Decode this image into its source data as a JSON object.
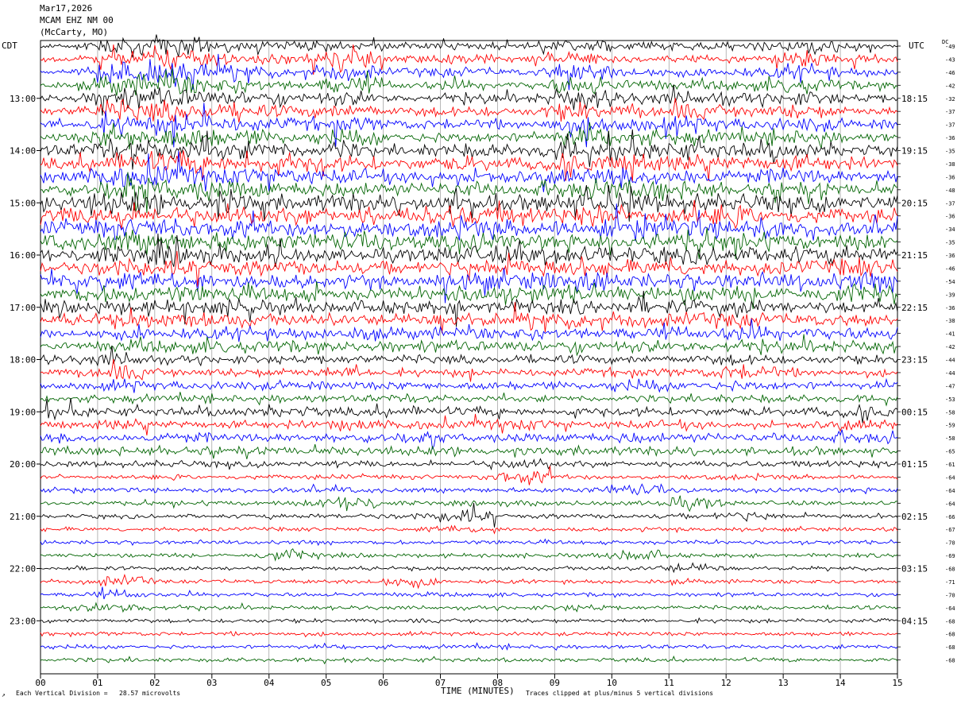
{
  "header": {
    "date": "Mar17,2026",
    "station": "MCAM EHZ NM 00",
    "location": "(McCarty, MO)"
  },
  "left_axis_title": "CDT",
  "right_axis_title": "UTC",
  "dc_title": "DC",
  "x_axis_title": "TIME (MINUTES)",
  "footer": {
    "scale_note": "Each Vertical Division =   28.57 microvolts",
    "clip_note": "Traces clipped at plus/minus 5 vertical divisions",
    "corner_mark": "↗"
  },
  "chart_data": {
    "type": "line",
    "subtype": "helicorder",
    "xlabel": "TIME (MINUTES)",
    "xlim": [
      0,
      15
    ],
    "x_ticks": [
      "00",
      "01",
      "02",
      "03",
      "04",
      "05",
      "06",
      "07",
      "08",
      "09",
      "10",
      "11",
      "12",
      "13",
      "14",
      "15"
    ],
    "rows_count": 48,
    "minutes_per_row": 15,
    "trace_colors": [
      "#000000",
      "#ff0000",
      "#0000ff",
      "#006400"
    ],
    "left_labels_cdt": [
      "13:00",
      "14:00",
      "15:00",
      "16:00",
      "17:00",
      "18:00",
      "19:00",
      "20:00",
      "21:00",
      "22:00",
      "23:00"
    ],
    "right_labels_utc": [
      "18:15",
      "19:15",
      "20:15",
      "21:15",
      "22:15",
      "23:15",
      "00:15",
      "01:15",
      "02:15",
      "03:15",
      "04:15"
    ],
    "dc_offsets": [
      -49,
      -43,
      -46,
      -42,
      -32,
      -37,
      -37,
      -36,
      -35,
      -38,
      -36,
      -48,
      -37,
      -36,
      -34,
      -35,
      -36,
      -46,
      -54,
      -39,
      -36,
      -38,
      -41,
      -42,
      -44,
      -44,
      -47,
      -53,
      -58,
      -59,
      -58,
      -65,
      -61,
      -64,
      -64,
      -64,
      -66,
      -67,
      -70,
      -69,
      -68,
      -71,
      -70,
      -64,
      -68,
      -68,
      -68,
      -68
    ],
    "activity_levels": [
      [
        0.4,
        2.0,
        3.0,
        1.5,
        1.0,
        1.5,
        0.8,
        1.2,
        0.6,
        2.0,
        1.0,
        1.0,
        1.0,
        2.0,
        1.0
      ],
      [
        0.4,
        2.5,
        3.0,
        1.5,
        1.0,
        3.0,
        0.8,
        1.2,
        0.6,
        2.0,
        1.0,
        1.0,
        1.0,
        2.5,
        1.0
      ],
      [
        0.6,
        3.0,
        3.0,
        2.0,
        1.2,
        2.5,
        0.9,
        1.2,
        0.7,
        2.5,
        1.5,
        1.0,
        1.2,
        2.0,
        1.0
      ],
      [
        0.6,
        3.0,
        3.0,
        2.0,
        1.2,
        2.5,
        0.9,
        1.2,
        0.7,
        2.5,
        1.5,
        1.0,
        1.2,
        2.0,
        1.0
      ],
      [
        1.0,
        3.0,
        3.0,
        2.0,
        1.5,
        2.0,
        1.0,
        1.5,
        1.0,
        2.5,
        1.5,
        2.0,
        1.5,
        2.0,
        1.0
      ],
      [
        1.0,
        3.0,
        3.0,
        2.0,
        1.5,
        2.0,
        1.0,
        1.5,
        1.0,
        2.5,
        1.5,
        2.0,
        1.5,
        2.0,
        1.0
      ],
      [
        1.0,
        3.0,
        3.0,
        2.0,
        1.5,
        2.0,
        1.2,
        1.5,
        1.2,
        2.5,
        2.0,
        2.0,
        1.5,
        2.0,
        1.2
      ],
      [
        1.0,
        3.0,
        3.0,
        2.0,
        1.5,
        2.0,
        1.2,
        1.5,
        1.2,
        2.5,
        2.0,
        2.0,
        1.5,
        2.0,
        1.2
      ],
      [
        1.5,
        3.0,
        3.0,
        2.5,
        2.0,
        2.0,
        1.5,
        2.0,
        1.5,
        2.5,
        2.5,
        2.5,
        2.0,
        2.0,
        1.5
      ],
      [
        1.5,
        3.0,
        3.0,
        2.5,
        2.0,
        2.0,
        1.5,
        2.0,
        1.5,
        2.5,
        2.5,
        2.5,
        2.0,
        2.0,
        1.5
      ],
      [
        1.5,
        3.0,
        3.0,
        2.5,
        2.0,
        2.0,
        1.5,
        2.0,
        1.5,
        2.5,
        2.5,
        2.5,
        2.0,
        2.0,
        1.5
      ],
      [
        1.5,
        3.0,
        3.0,
        2.5,
        2.0,
        2.0,
        1.5,
        2.0,
        1.5,
        2.5,
        2.5,
        2.5,
        2.0,
        2.0,
        1.5
      ],
      [
        2.0,
        3.0,
        2.5,
        2.5,
        2.0,
        2.5,
        2.0,
        3.0,
        2.0,
        2.5,
        2.5,
        2.5,
        2.5,
        2.0,
        2.0
      ],
      [
        2.0,
        3.0,
        2.5,
        2.5,
        2.0,
        2.5,
        2.0,
        3.0,
        2.0,
        2.5,
        2.5,
        2.5,
        2.5,
        2.0,
        2.0
      ],
      [
        2.0,
        3.0,
        2.5,
        2.5,
        2.0,
        2.5,
        2.0,
        3.0,
        2.0,
        2.5,
        2.5,
        2.5,
        2.5,
        2.0,
        2.0
      ],
      [
        2.0,
        3.0,
        2.5,
        2.5,
        2.0,
        2.5,
        2.0,
        3.0,
        2.0,
        2.5,
        2.5,
        2.5,
        2.5,
        2.0,
        2.0
      ],
      [
        1.5,
        2.5,
        2.5,
        2.0,
        2.0,
        1.5,
        1.5,
        2.5,
        2.5,
        2.5,
        2.0,
        2.0,
        2.0,
        2.0,
        2.0
      ],
      [
        1.5,
        2.5,
        2.5,
        2.0,
        2.0,
        1.5,
        1.5,
        2.5,
        2.5,
        2.5,
        2.0,
        2.0,
        2.0,
        2.0,
        2.5
      ],
      [
        2.0,
        2.5,
        2.5,
        2.0,
        2.0,
        1.5,
        1.5,
        2.5,
        2.5,
        2.5,
        2.0,
        2.0,
        2.0,
        2.0,
        2.5
      ],
      [
        2.0,
        2.5,
        2.5,
        2.0,
        2.0,
        1.5,
        1.5,
        2.5,
        2.5,
        2.5,
        2.0,
        2.0,
        2.0,
        2.0,
        2.5
      ],
      [
        1.5,
        2.0,
        2.0,
        2.0,
        1.5,
        1.5,
        1.5,
        2.0,
        2.0,
        2.0,
        2.0,
        2.0,
        2.0,
        1.5,
        1.5
      ],
      [
        1.5,
        2.0,
        2.0,
        2.0,
        1.5,
        1.5,
        1.5,
        2.0,
        2.0,
        2.0,
        2.0,
        2.0,
        2.0,
        1.5,
        1.5
      ],
      [
        1.0,
        1.5,
        1.5,
        1.5,
        1.5,
        1.5,
        1.5,
        1.5,
        1.5,
        1.5,
        1.5,
        1.5,
        2.0,
        1.5,
        1.5
      ],
      [
        1.0,
        1.5,
        1.5,
        1.5,
        1.5,
        1.5,
        1.5,
        1.5,
        1.5,
        1.5,
        1.5,
        1.5,
        2.0,
        1.5,
        1.5
      ],
      [
        1.0,
        2.0,
        1.0,
        1.0,
        1.0,
        1.0,
        1.0,
        1.0,
        1.0,
        1.0,
        1.0,
        1.0,
        1.5,
        1.0,
        1.0
      ],
      [
        0.8,
        2.0,
        1.0,
        1.0,
        1.0,
        1.5,
        0.8,
        1.0,
        0.8,
        0.8,
        1.0,
        1.0,
        2.5,
        1.0,
        0.8
      ],
      [
        0.8,
        1.5,
        1.0,
        1.0,
        1.0,
        1.0,
        1.0,
        1.0,
        0.8,
        0.8,
        1.5,
        1.0,
        1.5,
        1.0,
        0.8
      ],
      [
        0.6,
        1.0,
        0.8,
        0.8,
        1.0,
        0.8,
        1.0,
        0.8,
        0.6,
        0.6,
        0.8,
        1.0,
        1.0,
        0.8,
        0.8
      ],
      [
        1.5,
        1.0,
        1.0,
        1.0,
        1.5,
        1.0,
        1.5,
        1.0,
        1.0,
        1.0,
        1.0,
        1.0,
        1.0,
        1.0,
        1.5
      ],
      [
        0.8,
        1.5,
        1.0,
        0.8,
        0.8,
        1.5,
        1.0,
        1.0,
        1.5,
        0.8,
        1.0,
        1.0,
        0.8,
        0.8,
        1.5
      ],
      [
        1.0,
        1.0,
        1.5,
        1.0,
        1.0,
        1.0,
        1.5,
        1.0,
        1.0,
        1.0,
        1.5,
        1.0,
        1.0,
        1.0,
        1.5
      ],
      [
        1.0,
        1.0,
        1.5,
        1.0,
        1.0,
        1.0,
        1.0,
        1.0,
        0.8,
        1.0,
        1.0,
        1.0,
        1.0,
        1.0,
        0.8
      ],
      [
        0.5,
        0.6,
        0.8,
        0.6,
        0.6,
        0.6,
        0.6,
        0.6,
        1.5,
        0.6,
        0.6,
        0.6,
        0.6,
        0.6,
        0.8
      ],
      [
        0.4,
        0.4,
        0.4,
        0.4,
        0.4,
        0.4,
        0.4,
        0.4,
        2.0,
        0.4,
        0.4,
        0.4,
        0.6,
        0.4,
        0.4
      ],
      [
        0.4,
        0.4,
        0.4,
        0.4,
        0.6,
        0.6,
        0.4,
        0.4,
        0.4,
        0.4,
        1.5,
        0.4,
        0.4,
        0.4,
        0.6
      ],
      [
        0.4,
        0.4,
        0.4,
        0.4,
        0.4,
        2.0,
        0.4,
        0.4,
        0.6,
        0.4,
        0.4,
        1.5,
        0.4,
        0.4,
        0.4
      ],
      [
        0.3,
        0.3,
        0.3,
        0.3,
        0.5,
        0.4,
        0.6,
        2.0,
        0.4,
        0.4,
        0.4,
        0.4,
        1.5,
        0.4,
        0.4
      ],
      [
        0.3,
        0.3,
        0.3,
        0.3,
        0.3,
        0.3,
        0.3,
        1.0,
        0.3,
        0.3,
        0.3,
        0.3,
        0.3,
        0.3,
        0.3
      ],
      [
        0.3,
        0.3,
        0.3,
        0.3,
        0.3,
        0.3,
        0.3,
        0.3,
        0.3,
        0.3,
        0.3,
        0.3,
        0.3,
        0.3,
        0.3
      ],
      [
        0.3,
        0.3,
        0.3,
        0.3,
        1.5,
        0.3,
        0.3,
        0.3,
        0.3,
        0.3,
        1.5,
        0.3,
        0.3,
        0.3,
        0.3
      ],
      [
        0.3,
        0.3,
        0.3,
        0.3,
        0.3,
        0.3,
        0.3,
        0.3,
        0.3,
        0.3,
        0.4,
        1.2,
        0.3,
        0.3,
        0.3
      ],
      [
        0.3,
        1.5,
        0.3,
        0.3,
        0.3,
        0.3,
        1.5,
        0.3,
        0.3,
        0.3,
        0.3,
        0.5,
        0.3,
        0.3,
        0.3
      ],
      [
        0.3,
        1.0,
        0.3,
        0.3,
        0.3,
        0.3,
        0.4,
        0.3,
        0.3,
        0.3,
        0.3,
        0.3,
        0.3,
        0.3,
        0.3
      ],
      [
        0.6,
        1.5,
        0.6,
        0.3,
        0.3,
        0.3,
        0.3,
        0.3,
        0.3,
        0.8,
        0.3,
        0.3,
        0.3,
        0.3,
        0.3
      ],
      [
        0.3,
        0.3,
        0.3,
        0.3,
        0.3,
        0.3,
        0.3,
        0.3,
        0.3,
        0.3,
        0.3,
        0.3,
        0.3,
        0.3,
        0.3
      ],
      [
        0.3,
        0.3,
        0.3,
        0.3,
        0.3,
        0.3,
        0.3,
        0.3,
        0.3,
        0.3,
        0.3,
        0.3,
        0.3,
        0.3,
        0.3
      ],
      [
        0.3,
        0.3,
        0.3,
        0.3,
        0.3,
        0.3,
        0.3,
        0.3,
        0.3,
        0.3,
        0.3,
        0.3,
        0.3,
        0.3,
        0.3
      ],
      [
        0.3,
        0.5,
        0.3,
        0.3,
        0.3,
        0.3,
        0.3,
        0.3,
        0.3,
        0.3,
        0.3,
        0.3,
        0.3,
        0.3,
        0.3
      ]
    ]
  }
}
